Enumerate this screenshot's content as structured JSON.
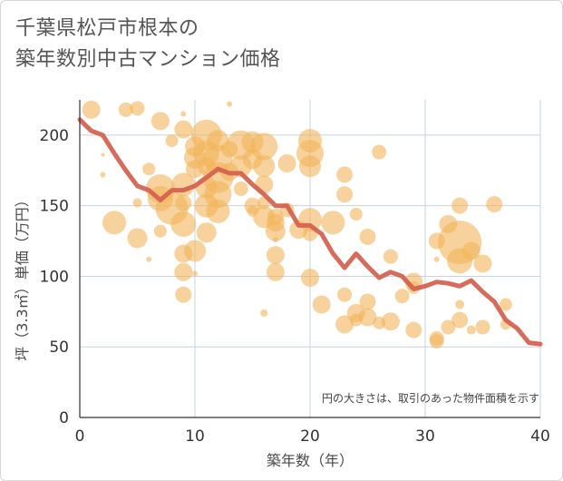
{
  "chart_data": {
    "type": "scatter",
    "title_lines": [
      "千葉県松戸市根本の",
      "築年数別中古マンション価格"
    ],
    "xlabel": "築年数（年）",
    "ylabel": "坪（3.3㎡）単価（万円）",
    "note": "円の大きさは、取引のあった物件面積を示す",
    "xlim": [
      0,
      40
    ],
    "ylim": [
      0,
      225
    ],
    "xticks": [
      0,
      10,
      20,
      30,
      40
    ],
    "yticks": [
      0,
      50,
      100,
      150,
      200
    ],
    "grid": true,
    "colors": {
      "bubble": "#f2b45a",
      "line": "#d4604e",
      "grid": "#c7d3e0"
    },
    "series": [
      {
        "type": "bubble",
        "points": [
          [
            1,
            218,
            10
          ],
          [
            4,
            218,
            8
          ],
          [
            5,
            219,
            8
          ],
          [
            7,
            210,
            10
          ],
          [
            9,
            215,
            3
          ],
          [
            8,
            196,
            7
          ],
          [
            9,
            204,
            10
          ],
          [
            2,
            172,
            3
          ],
          [
            3,
            138,
            13
          ],
          [
            5,
            127,
            11
          ],
          [
            6,
            176,
            7
          ],
          [
            7,
            132,
            7
          ],
          [
            6,
            112,
            3
          ],
          [
            5,
            152,
            5
          ],
          [
            7,
            162,
            16
          ],
          [
            7,
            155,
            14
          ],
          [
            8,
            148,
            18
          ],
          [
            9,
            165,
            13
          ],
          [
            9,
            152,
            9
          ],
          [
            10,
            192,
            11
          ],
          [
            10,
            184,
            12
          ],
          [
            10,
            176,
            10
          ],
          [
            9,
            137,
            14
          ],
          [
            9,
            116,
            10
          ],
          [
            9,
            103,
            10
          ],
          [
            9,
            87,
            9
          ],
          [
            10,
            118,
            12
          ],
          [
            10,
            102,
            3
          ],
          [
            11,
            200,
            17
          ],
          [
            11,
            187,
            14
          ],
          [
            11,
            178,
            10
          ],
          [
            11,
            163,
            12
          ],
          [
            11,
            150,
            13
          ],
          [
            11,
            131,
            11
          ],
          [
            12,
            196,
            12
          ],
          [
            12,
            183,
            16
          ],
          [
            12,
            170,
            17
          ],
          [
            12,
            158,
            15
          ],
          [
            12,
            146,
            13
          ],
          [
            13,
            190,
            9
          ],
          [
            13,
            174,
            10
          ],
          [
            14,
            193,
            16
          ],
          [
            14,
            178,
            12
          ],
          [
            14,
            162,
            8
          ],
          [
            15,
            195,
            12
          ],
          [
            15,
            183,
            11
          ],
          [
            15,
            150,
            9
          ],
          [
            15,
            146,
            6
          ],
          [
            16,
            192,
            15
          ],
          [
            16,
            178,
            12
          ],
          [
            16,
            165,
            10
          ],
          [
            16,
            152,
            7
          ],
          [
            16,
            142,
            12
          ],
          [
            17,
            138,
            10
          ],
          [
            17,
            132,
            11
          ],
          [
            17,
            115,
            10
          ],
          [
            17,
            103,
            10
          ],
          [
            17,
            126,
            3
          ],
          [
            17,
            142,
            9
          ],
          [
            18,
            180,
            10
          ],
          [
            18,
            147,
            8
          ],
          [
            19,
            133,
            10
          ],
          [
            20,
            196,
            13
          ],
          [
            20,
            187,
            15
          ],
          [
            20,
            178,
            12
          ],
          [
            20,
            140,
            13
          ],
          [
            20,
            130,
            8
          ],
          [
            20,
            99,
            10
          ],
          [
            21,
            80,
            10
          ],
          [
            22,
            138,
            13
          ],
          [
            23,
            172,
            9
          ],
          [
            23,
            158,
            9
          ],
          [
            23,
            87,
            8
          ],
          [
            23,
            66,
            10
          ],
          [
            24,
            144,
            7
          ],
          [
            24,
            74,
            10
          ],
          [
            24,
            69,
            7
          ],
          [
            25,
            128,
            9
          ],
          [
            25,
            82,
            9
          ],
          [
            25,
            71,
            10
          ],
          [
            26,
            188,
            8
          ],
          [
            26,
            67,
            7
          ],
          [
            27,
            114,
            8
          ],
          [
            27,
            68,
            10
          ],
          [
            28,
            86,
            8
          ],
          [
            29,
            96,
            10
          ],
          [
            29,
            92,
            7
          ],
          [
            29,
            62,
            9
          ],
          [
            31,
            125,
            9
          ],
          [
            31,
            112,
            3
          ],
          [
            31,
            56,
            8
          ],
          [
            31,
            54,
            8
          ],
          [
            32,
            137,
            10
          ],
          [
            32,
            64,
            8
          ],
          [
            33,
            150,
            9
          ],
          [
            33,
            124,
            24
          ],
          [
            33,
            111,
            14
          ],
          [
            33,
            80,
            5
          ],
          [
            33,
            69,
            9
          ],
          [
            34,
            118,
            10
          ],
          [
            34,
            62,
            5
          ],
          [
            35,
            109,
            10
          ],
          [
            35,
            64,
            8
          ],
          [
            36,
            151,
            9
          ],
          [
            37,
            80,
            7
          ],
          [
            37,
            66,
            6
          ],
          [
            16,
            74,
            4
          ],
          [
            13,
            222,
            3
          ],
          [
            2,
            186,
            2
          ]
        ]
      },
      {
        "type": "line",
        "points": [
          [
            0,
            211
          ],
          [
            1,
            203
          ],
          [
            2,
            200
          ],
          [
            3,
            187
          ],
          [
            4,
            175
          ],
          [
            5,
            164
          ],
          [
            6,
            161
          ],
          [
            7,
            154
          ],
          [
            8,
            161
          ],
          [
            9,
            161
          ],
          [
            10,
            164
          ],
          [
            11,
            170
          ],
          [
            12,
            176
          ],
          [
            13,
            173
          ],
          [
            14,
            173
          ],
          [
            15,
            165
          ],
          [
            16,
            158
          ],
          [
            17,
            150
          ],
          [
            18,
            150
          ],
          [
            19,
            136
          ],
          [
            20,
            136
          ],
          [
            21,
            130
          ],
          [
            22,
            116
          ],
          [
            23,
            106
          ],
          [
            24,
            116
          ],
          [
            25,
            107
          ],
          [
            26,
            99
          ],
          [
            27,
            103
          ],
          [
            28,
            100
          ],
          [
            29,
            91
          ],
          [
            30,
            93
          ],
          [
            31,
            96
          ],
          [
            32,
            95
          ],
          [
            33,
            93
          ],
          [
            34,
            97
          ],
          [
            35,
            89
          ],
          [
            36,
            82
          ],
          [
            37,
            69
          ],
          [
            38,
            63
          ],
          [
            39,
            53
          ],
          [
            40,
            52
          ]
        ]
      }
    ]
  }
}
